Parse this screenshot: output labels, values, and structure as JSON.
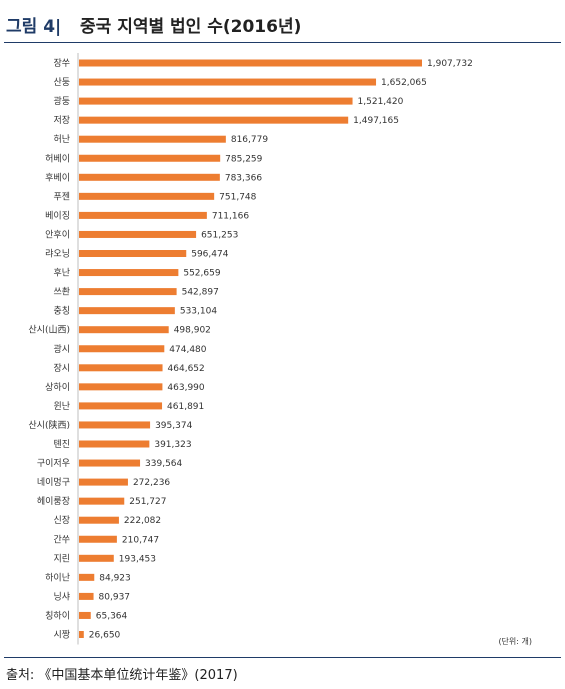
{
  "figure": {
    "label": "그림 4|",
    "title": "중국 지역별 법인 수(2016년)",
    "source": "출처: 《中国基本单位统计年鉴》(2017)"
  },
  "colors": {
    "bar": "#ed7d31",
    "accent": "#1f3b67"
  },
  "chart_data": {
    "type": "bar",
    "orientation": "horizontal",
    "unit": "(단위: 개)",
    "categories": [
      "장쑤",
      "산둥",
      "광둥",
      "저장",
      "허난",
      "허베이",
      "후베이",
      "푸젠",
      "베이징",
      "안후이",
      "랴오닝",
      "후난",
      "쓰촨",
      "충칭",
      "산시(山西)",
      "광시",
      "장시",
      "상하이",
      "윈난",
      "산시(陕西)",
      "톈진",
      "구이저우",
      "네이멍구",
      "헤이룽장",
      "신장",
      "간쑤",
      "지린",
      "하이난",
      "닝샤",
      "칭하이",
      "시짱"
    ],
    "values": [
      1907732,
      1652065,
      1521420,
      1497165,
      816779,
      785259,
      783366,
      751748,
      711166,
      651253,
      596474,
      552659,
      542897,
      533104,
      498902,
      474480,
      464652,
      463990,
      461891,
      395374,
      391323,
      339564,
      272236,
      251727,
      222082,
      210747,
      193453,
      84923,
      80937,
      65364,
      26650
    ],
    "value_labels": [
      "1,907,732",
      "1,652,065",
      "1,521,420",
      "1,497,165",
      "816,779",
      "785,259",
      "783,366",
      "751,748",
      "711,166",
      "651,253",
      "596,474",
      "552,659",
      "542,897",
      "533,104",
      "498,902",
      "474,480",
      "464,652",
      "463,990",
      "461,891",
      "395,374",
      "391,323",
      "339,564",
      "272,236",
      "251,727",
      "222,082",
      "210,747",
      "193,453",
      "84,923",
      "80,937",
      "65,364",
      "26,650"
    ],
    "xlim": [
      0,
      1907732
    ]
  }
}
